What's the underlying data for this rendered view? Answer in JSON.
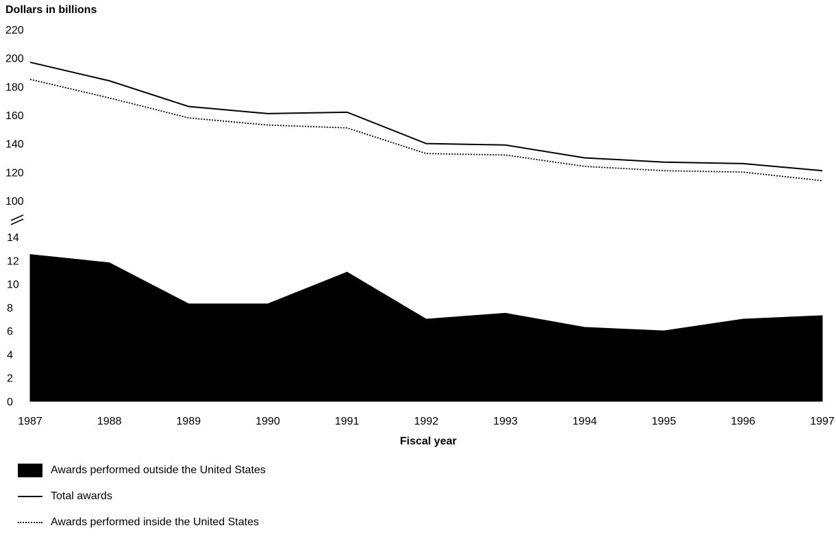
{
  "chart_data": {
    "type": "area",
    "ylabel": "Dollars in billions",
    "xlabel": "Fiscal year",
    "x": [
      "1987",
      "1988",
      "1989",
      "1990",
      "1991",
      "1992",
      "1993",
      "1994",
      "1995",
      "1996",
      "1997"
    ],
    "axis_break": true,
    "upper_panel": {
      "ylim": [
        100,
        220
      ],
      "ticks": [
        "100",
        "120",
        "140",
        "160",
        "180",
        "200",
        "220"
      ],
      "series": [
        {
          "name": "Total awards",
          "style": "solid",
          "values": [
            197,
            184,
            166,
            161,
            162,
            140,
            139,
            130,
            127,
            126,
            121
          ]
        },
        {
          "name": "Awards performed inside the United States",
          "style": "dotted",
          "values": [
            185,
            172,
            158,
            153,
            151,
            133,
            132,
            124,
            121,
            120,
            114
          ]
        }
      ]
    },
    "lower_panel": {
      "ylim": [
        0,
        14
      ],
      "ticks": [
        "0",
        "2",
        "4",
        "6",
        "8",
        "10",
        "12",
        "14"
      ],
      "series": [
        {
          "name": "Awards performed outside the United States",
          "style": "filled",
          "values": [
            12.5,
            11.8,
            8.3,
            8.3,
            11.0,
            7.0,
            7.5,
            6.3,
            6.0,
            7.0,
            7.3
          ]
        }
      ]
    },
    "legend": [
      {
        "label": "Awards performed outside the United States",
        "symbol": "filled-box"
      },
      {
        "label": "Total awards",
        "symbol": "solid-line"
      },
      {
        "label": "Awards performed inside the United States",
        "symbol": "dotted-line"
      }
    ],
    "legend_position": "bottom-left",
    "grid": false
  }
}
